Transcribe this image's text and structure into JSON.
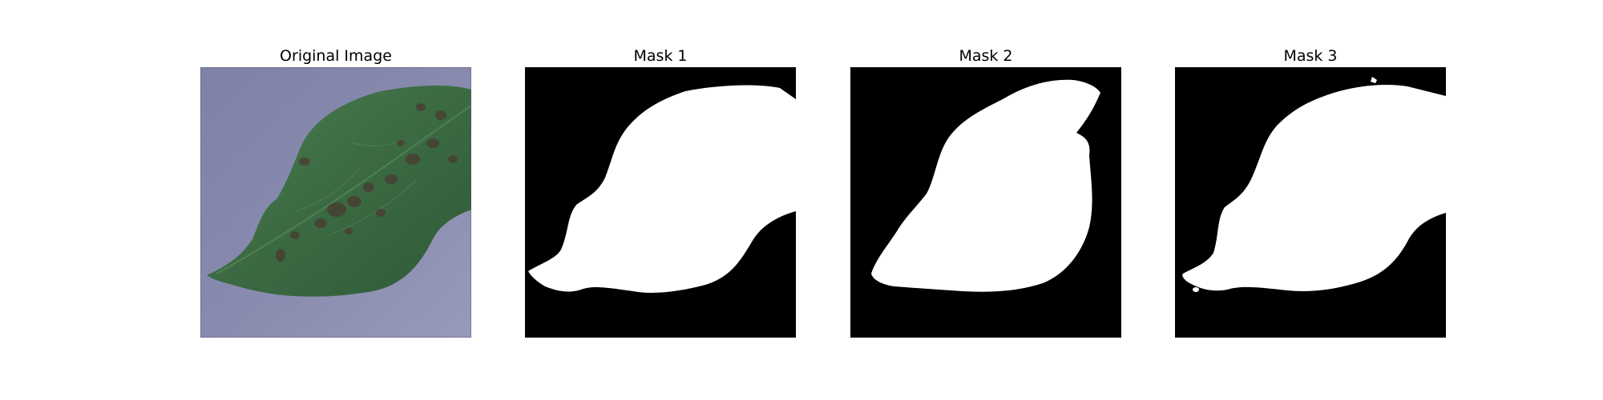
{
  "panels": [
    {
      "title": "Original Image",
      "kind": "photo",
      "subject": "leaf-photo"
    },
    {
      "title": "Mask 1",
      "kind": "mask"
    },
    {
      "title": "Mask 2",
      "kind": "mask"
    },
    {
      "title": "Mask 3",
      "kind": "mask"
    }
  ],
  "colors": {
    "page_background": "#ffffff",
    "photo_background": "#7f82a8",
    "leaf": "#3f7044",
    "leaf_dark": "#2a4a30",
    "leaf_spot": "#4a3a32",
    "mask_background": "#000000",
    "mask_foreground": "#ffffff"
  }
}
